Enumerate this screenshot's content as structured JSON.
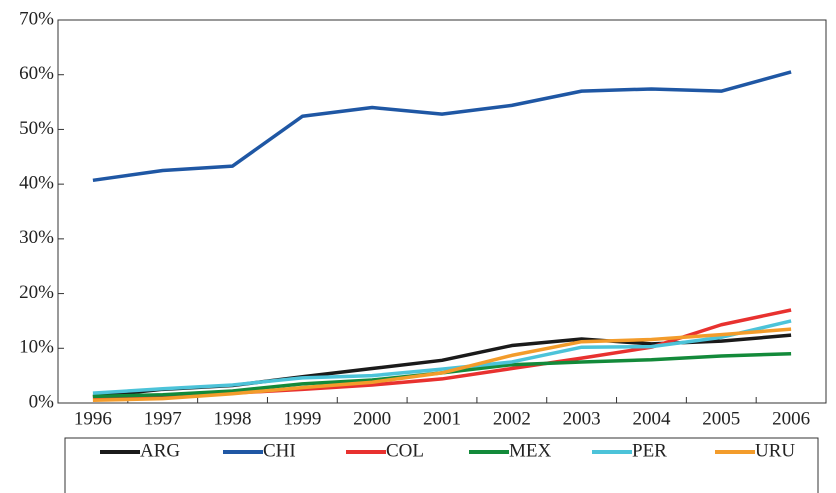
{
  "chart_data": {
    "type": "line",
    "categories": [
      "1996",
      "1997",
      "1998",
      "1999",
      "2000",
      "2001",
      "2002",
      "2003",
      "2004",
      "2005",
      "2006"
    ],
    "series": [
      {
        "name": "ARG",
        "color": "#1a1a1a",
        "values": [
          1.2,
          2.5,
          3.2,
          4.8,
          6.3,
          7.8,
          10.5,
          11.7,
          10.8,
          11.3,
          12.4
        ]
      },
      {
        "name": "CHI",
        "color": "#1f57a4",
        "values": [
          40.7,
          42.5,
          43.3,
          52.4,
          54.0,
          52.8,
          54.4,
          57.0,
          57.4,
          57.0,
          60.5
        ]
      },
      {
        "name": "COL",
        "color": "#e8312f",
        "values": [
          1.0,
          1.2,
          1.8,
          2.5,
          3.3,
          4.4,
          6.3,
          8.2,
          10.2,
          14.3,
          17.0
        ]
      },
      {
        "name": "MEX",
        "color": "#138a3a",
        "values": [
          1.2,
          1.5,
          2.2,
          3.5,
          4.2,
          5.5,
          7.0,
          7.5,
          7.9,
          8.6,
          9.0
        ]
      },
      {
        "name": "PER",
        "color": "#4cc3d9",
        "values": [
          1.8,
          2.6,
          3.3,
          4.6,
          5.0,
          6.2,
          7.5,
          10.2,
          10.3,
          12.0,
          15.0
        ]
      },
      {
        "name": "URU",
        "color": "#f39c2b",
        "values": [
          0.5,
          0.8,
          1.7,
          2.8,
          3.8,
          5.5,
          8.7,
          11.2,
          11.6,
          12.5,
          13.5
        ]
      }
    ],
    "ylim": [
      0,
      70
    ],
    "yticks": [
      {
        "value": 0,
        "label": "0%"
      },
      {
        "value": 10,
        "label": "10%"
      },
      {
        "value": 20,
        "label": "20%"
      },
      {
        "value": 30,
        "label": "30%"
      },
      {
        "value": 40,
        "label": "40%"
      },
      {
        "value": 50,
        "label": "50%"
      },
      {
        "value": 60,
        "label": "60%"
      },
      {
        "value": 70,
        "label": "70%"
      }
    ]
  }
}
